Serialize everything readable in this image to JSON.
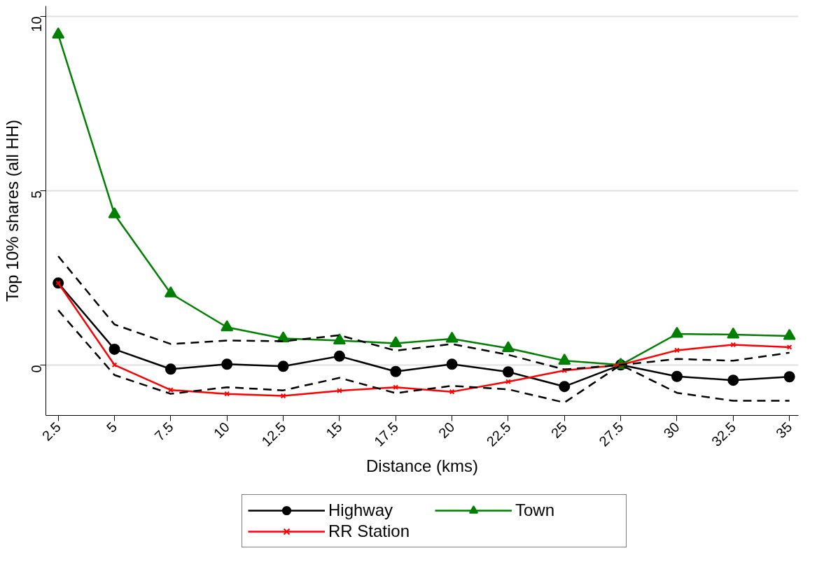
{
  "chart_data": {
    "type": "line",
    "xlabel": "Distance (kms)",
    "ylabel": "Top 10% shares (all HH)",
    "x": [
      2.5,
      5,
      7.5,
      10,
      12.5,
      15,
      17.5,
      20,
      22.5,
      25,
      27.5,
      30,
      32.5,
      35
    ],
    "series": [
      {
        "name": "Highway",
        "color": "#000000",
        "marker": "circle",
        "line_style": "solid",
        "values": [
          2.35,
          0.45,
          -0.12,
          0.02,
          -0.04,
          0.25,
          -0.19,
          0.02,
          -0.2,
          -0.62,
          0,
          -0.33,
          -0.44,
          -0.34
        ]
      },
      {
        "name": "Town",
        "color": "#008000",
        "marker": "triangle",
        "line_style": "solid",
        "values": [
          9.48,
          4.32,
          2.05,
          1.08,
          0.76,
          0.7,
          0.62,
          0.75,
          0.48,
          0.12,
          0,
          0.89,
          0.87,
          0.83
        ]
      },
      {
        "name": "RR Station",
        "color": "#ff0000",
        "marker": "cross",
        "line_style": "solid",
        "values": [
          2.35,
          0,
          -0.72,
          -0.83,
          -0.89,
          -0.74,
          -0.64,
          -0.77,
          -0.48,
          -0.16,
          0,
          0.42,
          0.58,
          0.51
        ]
      },
      {
        "color": "#000000",
        "marker": "none",
        "line_style": "dashed",
        "values": [
          3.12,
          1.16,
          0.6,
          0.7,
          0.68,
          0.85,
          0.41,
          0.6,
          0.29,
          -0.13,
          0,
          0.17,
          0.12,
          0.35
        ]
      },
      {
        "color": "#000000",
        "marker": "none",
        "line_style": "dashed",
        "values": [
          1.57,
          -0.29,
          -0.83,
          -0.64,
          -0.73,
          -0.37,
          -0.81,
          -0.6,
          -0.7,
          -1.08,
          0,
          -0.8,
          -1.03,
          -1.03
        ]
      }
    ],
    "xlim": [
      1.95,
      35.4
    ],
    "ylim": [
      -1.45,
      10.3
    ],
    "xticks": [
      2.5,
      5,
      7.5,
      10,
      12.5,
      15,
      17.5,
      20,
      22.5,
      25,
      27.5,
      30,
      32.5,
      35
    ],
    "yticks": [
      0,
      5,
      10
    ],
    "grid": "y",
    "legend": "bottom"
  }
}
